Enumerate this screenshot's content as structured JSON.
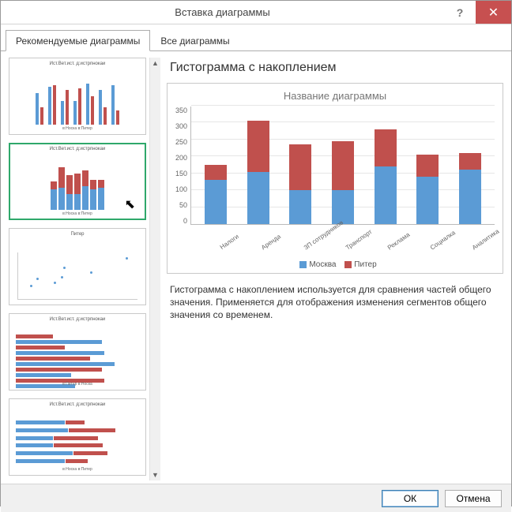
{
  "window": {
    "title": "Вставка диаграммы",
    "help_label": "?",
    "close_label": "✕"
  },
  "tabs": {
    "recommended": "Рекомендуемые диаграммы",
    "all": "Все диаграммы"
  },
  "thumbs": {
    "t1": {
      "title": "Ист.Вет.ист. д:истрпнокаи",
      "legend": "в:Носка  в:Питер"
    },
    "t2": {
      "title": "Ист.Вет.ист. д:истрпнокаи",
      "legend": "в:Носка  в:Питер"
    },
    "t3": {
      "title": "Питер"
    },
    "t4": {
      "title": "Ист.Вет.ист. д:истрпнокаи",
      "legend": "в:Питер  в:Носка"
    },
    "t5": {
      "title": "Ист.Вет.ист. д:истрпнокаи",
      "legend": "в:Носка  в:Питер"
    }
  },
  "preview": {
    "type_title": "Гистограмма с накоплением",
    "chart": {
      "type": "stacked-bar",
      "title": "Название диаграммы",
      "categories": [
        "Налоги",
        "Аренда",
        "ЗП сотрудников",
        "Транспорт",
        "Реклама",
        "Социалка",
        "Аналитика"
      ],
      "series": [
        {
          "name": "Москва",
          "color": "#5b9bd5",
          "values": [
            130,
            155,
            100,
            100,
            170,
            140,
            160
          ]
        },
        {
          "name": "Питер",
          "color": "#c0504d",
          "values": [
            45,
            150,
            135,
            145,
            110,
            65,
            50
          ]
        }
      ],
      "ylim_max": 350,
      "ytick_step": 50,
      "yticks": [
        "350",
        "300",
        "250",
        "200",
        "150",
        "100",
        "50",
        "0"
      ],
      "grid_color": "#e6e6e6",
      "background": "#ffffff"
    },
    "legend": {
      "s1": "Москва",
      "s2": "Питер"
    },
    "description": "Гистограмма с накоплением используется для сравнения частей общего значения. Применяется для отображения изменения сегментов общего значения со временем."
  },
  "buttons": {
    "ok": "ОК",
    "cancel": "Отмена"
  },
  "colors": {
    "series1": "#5b9bd5",
    "series2": "#c0504d",
    "accent_sel": "#2fa86b"
  }
}
